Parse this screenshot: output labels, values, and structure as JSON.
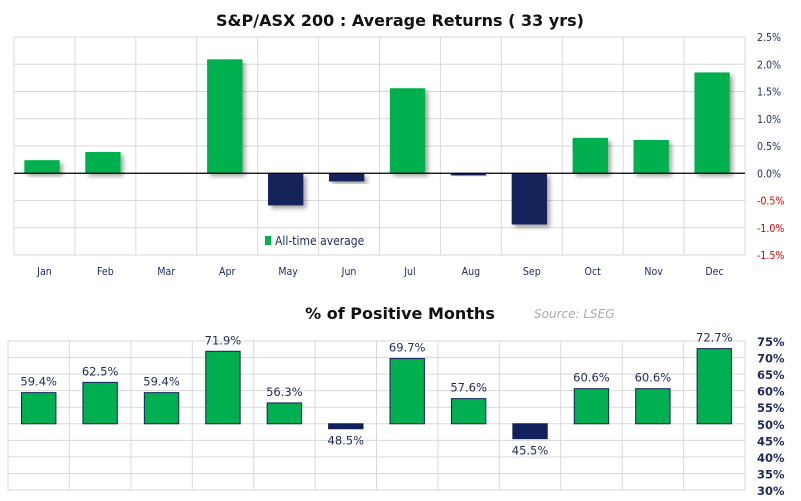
{
  "chart_data": [
    {
      "type": "bar",
      "title": "S&P/ASX 200 : Average Returns ( 33 yrs)",
      "categories": [
        "Jan",
        "Feb",
        "Mar",
        "Apr",
        "May",
        "Jun",
        "Jul",
        "Aug",
        "Sep",
        "Oct",
        "Nov",
        "Dec"
      ],
      "series": [
        {
          "name": "All-time average",
          "values": [
            0.24,
            0.39,
            -0.01,
            2.09,
            -0.59,
            -0.15,
            1.56,
            -0.04,
            -0.94,
            0.65,
            0.61,
            1.85
          ]
        }
      ],
      "ylim": [
        -1.5,
        2.5
      ],
      "yticks": [
        "2.5%",
        "2.0%",
        "1.5%",
        "1.0%",
        "0.5%",
        "0.0%",
        "-0.5%",
        "-1.0%",
        "-1.5%"
      ],
      "ytick_values": [
        2.5,
        2.0,
        1.5,
        1.0,
        0.5,
        0.0,
        -0.5,
        -1.0,
        -1.5
      ],
      "grid": true,
      "legend": "bottom-center",
      "colors": {
        "positive": "#00b050",
        "negative": "#13215a",
        "negative_tick": "#e00000"
      }
    },
    {
      "type": "bar",
      "title": "% of Positive Months",
      "source": "Source:  LSEG",
      "categories": [
        "Jan",
        "Feb",
        "Mar",
        "Apr",
        "May",
        "Jun",
        "Jul",
        "Aug",
        "Sep",
        "Oct",
        "Nov",
        "Dec"
      ],
      "values": [
        59.4,
        62.5,
        59.4,
        71.9,
        56.3,
        48.5,
        69.7,
        57.6,
        45.5,
        60.6,
        60.6,
        72.7
      ],
      "data_labels": [
        "59.4%",
        "62.5%",
        "59.4%",
        "71.9%",
        "56.3%",
        "48.5%",
        "69.7%",
        "57.6%",
        "45.5%",
        "60.6%",
        "60.6%",
        "72.7%"
      ],
      "baseline": 50,
      "ylim": [
        30,
        75
      ],
      "yticks": [
        "75%",
        "70%",
        "65%",
        "60%",
        "55%",
        "50%",
        "45%",
        "40%",
        "35%",
        "30%"
      ],
      "ytick_values": [
        75,
        70,
        65,
        60,
        55,
        50,
        45,
        40,
        35,
        30
      ],
      "grid": true,
      "colors": {
        "positive": "#00b050",
        "negative": "#13215a",
        "outline": "#13215a"
      }
    }
  ]
}
